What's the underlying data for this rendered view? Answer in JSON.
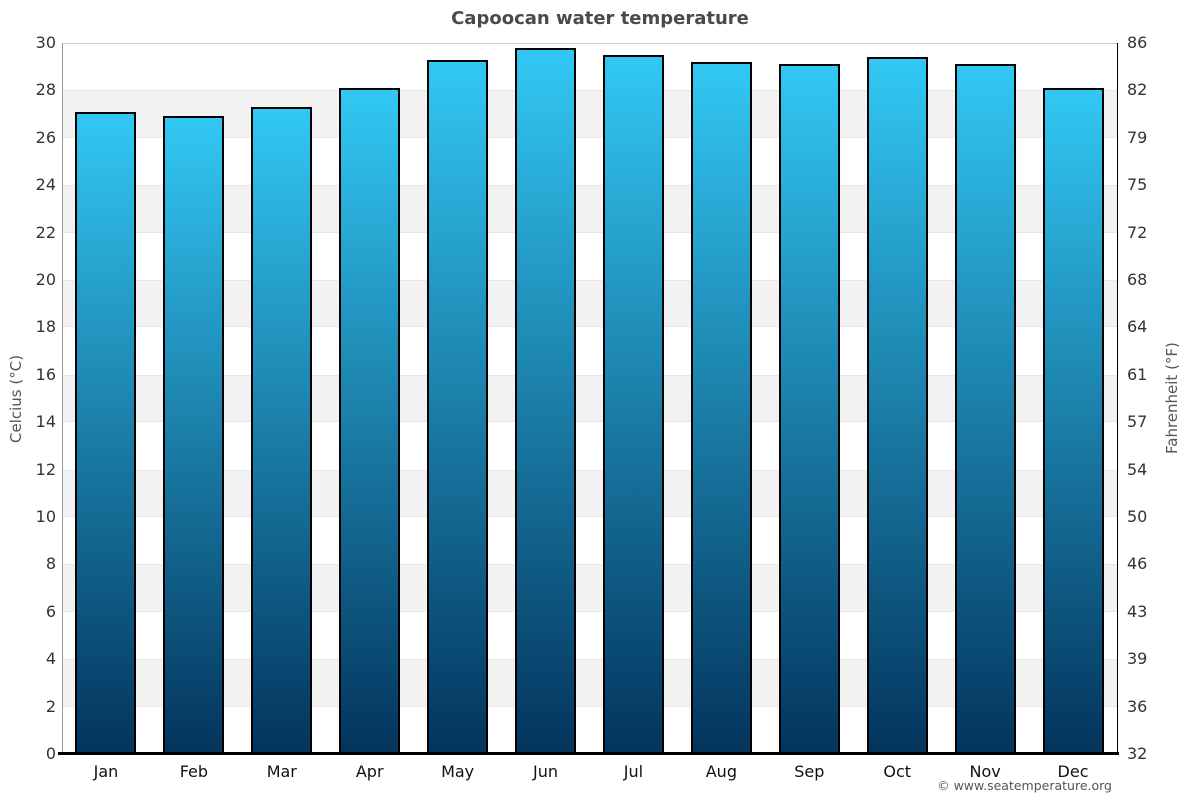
{
  "chart_data": {
    "type": "bar",
    "title": "Capoocan water temperature",
    "categories": [
      "Jan",
      "Feb",
      "Mar",
      "Apr",
      "May",
      "Jun",
      "Jul",
      "Aug",
      "Sep",
      "Oct",
      "Nov",
      "Dec"
    ],
    "values": [
      27.1,
      26.9,
      27.3,
      28.1,
      29.3,
      29.8,
      29.5,
      29.2,
      29.1,
      29.4,
      29.1,
      28.1
    ],
    "unit": "°C",
    "ylim": [
      0,
      30
    ],
    "grid": "alternating horizontal bands every 2°C",
    "legend": "none",
    "y_axis_left": {
      "label": "Celcius (°C)",
      "ticks": [
        0,
        2,
        4,
        6,
        8,
        10,
        12,
        14,
        16,
        18,
        20,
        22,
        24,
        26,
        28,
        30
      ]
    },
    "y_axis_right": {
      "label": "Fahrenheit (°F)",
      "tick_labels_bottom_up": [
        "32",
        "36",
        "39",
        "43",
        "46",
        "50",
        "54",
        "57",
        "61",
        "64",
        "68",
        "72",
        "75",
        "79",
        "82",
        "86"
      ]
    },
    "colors": {
      "bar_gradient_top": "#32c8f4",
      "bar_gradient_bottom": "#03345c",
      "bar_border": "#000000",
      "band_gray": "#f2f2f2",
      "title_text": "#4a4a4a",
      "tick_text": "#333333"
    }
  },
  "footer": {
    "credit": "© www.seatemperature.org"
  }
}
